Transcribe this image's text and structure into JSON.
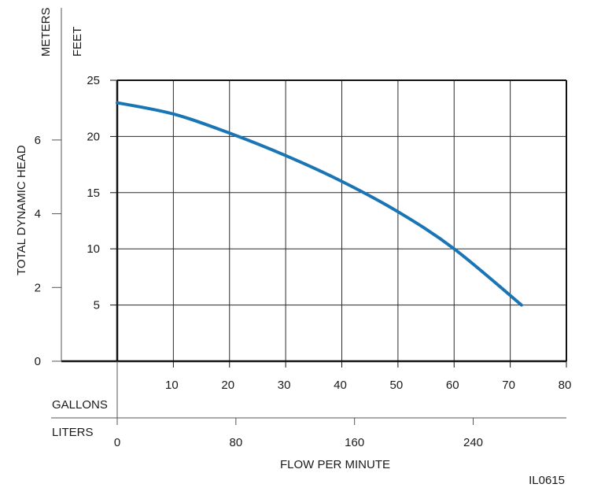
{
  "chart_data": {
    "type": "line",
    "xlabel": "FLOW PER MINUTE",
    "ylabel": "TOTAL DYNAMIC HEAD",
    "x_unit_primary": "GALLONS",
    "x_unit_secondary": "LITERS",
    "y_unit_primary": "FEET",
    "y_unit_secondary": "METERS",
    "xlim": [
      0,
      80
    ],
    "ylim": [
      0,
      25
    ],
    "grid": true,
    "x_ticks": [
      10,
      20,
      30,
      40,
      50,
      60,
      70,
      80
    ],
    "y_ticks": [
      5,
      10,
      15,
      20,
      25
    ],
    "x2_ticks": [
      {
        "liters": 0,
        "label": "0"
      },
      {
        "liters": 80,
        "label": "80"
      },
      {
        "liters": 160,
        "label": "160"
      },
      {
        "liters": 240,
        "label": "240"
      }
    ],
    "y2_ticks": [
      {
        "meters": 0,
        "label": "0"
      },
      {
        "meters": 2,
        "label": "2"
      },
      {
        "meters": 4,
        "label": "4"
      },
      {
        "meters": 6,
        "label": "6"
      }
    ],
    "series": [
      {
        "color": "#1a75b5",
        "x": [
          0,
          10,
          20,
          30,
          40,
          50,
          60,
          72
        ],
        "y": [
          23.0,
          22.0,
          20.3,
          18.3,
          16.0,
          13.3,
          10.0,
          5.0
        ]
      }
    ],
    "annotation": "IL0615"
  }
}
